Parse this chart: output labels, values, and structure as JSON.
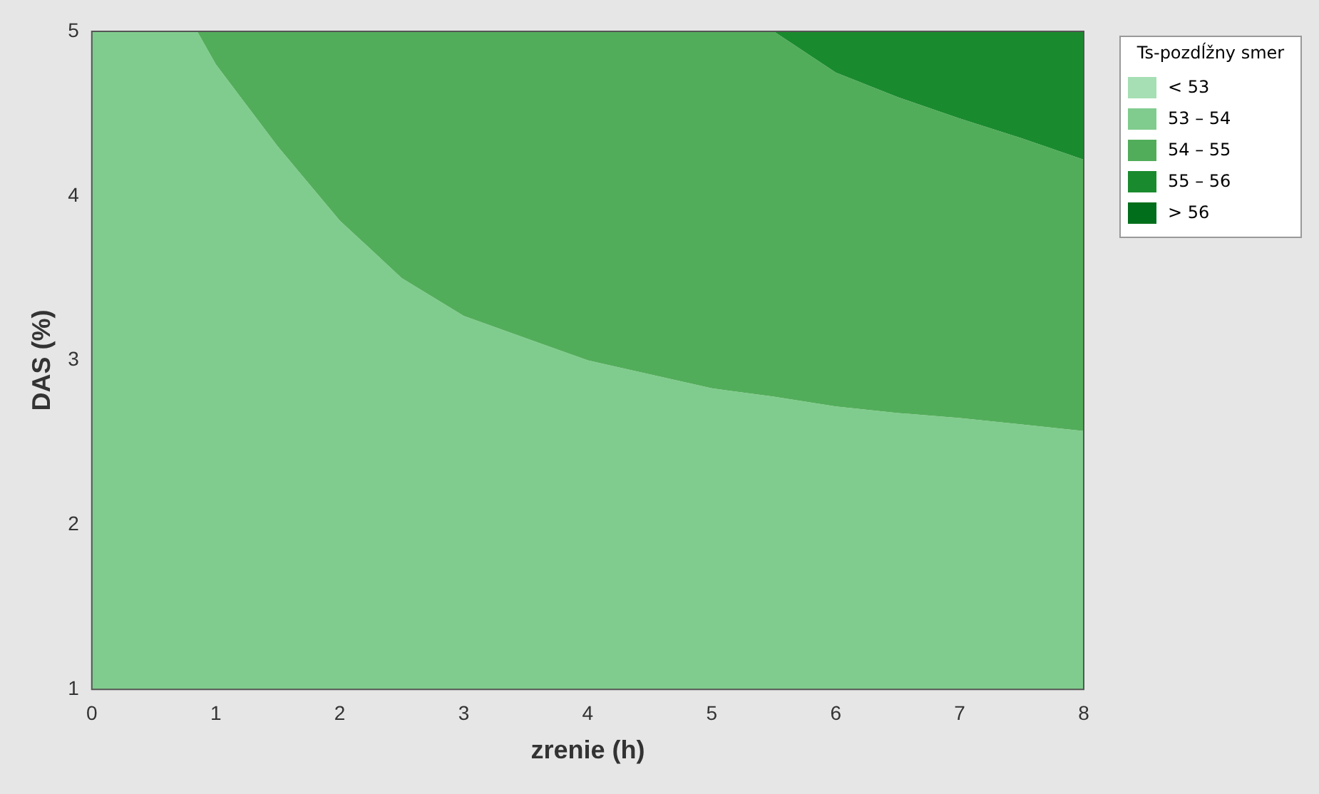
{
  "chart_data": {
    "type": "area",
    "xlabel": "zrenie (h)",
    "ylabel": "DAS (%)",
    "legend_title": "Ts-pozdĺžny smer",
    "legend": "right",
    "grid": false,
    "marker": "none",
    "x": [
      0,
      0.85,
      1,
      1.5,
      2,
      2.5,
      3,
      4,
      5,
      5.5,
      6,
      6.5,
      7,
      7.5,
      8
    ],
    "xlim": [
      0,
      8
    ],
    "xticks": [
      0,
      1,
      2,
      3,
      4,
      5,
      6,
      7,
      8
    ],
    "ylim": [
      1,
      5
    ],
    "yticks": [
      1,
      2,
      3,
      4,
      5
    ],
    "series": [
      {
        "name": "< 53",
        "color": "#a6dfb3",
        "values": [
          null,
          null,
          null,
          null,
          null,
          null,
          null,
          null,
          null,
          null,
          null,
          null,
          null,
          null,
          null
        ]
      },
      {
        "name": "53 – 54",
        "color": "#80cc8e",
        "values": [
          5,
          5,
          4.8,
          4.3,
          3.85,
          3.5,
          3.27,
          3.0,
          2.83,
          2.78,
          2.72,
          2.68,
          2.65,
          2.61,
          2.57
        ]
      },
      {
        "name": "54 – 55",
        "color": "#52ad5a",
        "values": [
          5,
          5,
          5,
          5,
          5,
          5,
          5,
          5,
          5,
          5,
          4.75,
          4.6,
          4.47,
          4.35,
          4.22
        ]
      },
      {
        "name": "55 – 56",
        "color": "#1a8a2e",
        "values": [
          null,
          null,
          null,
          null,
          null,
          null,
          null,
          null,
          null,
          5,
          5,
          5,
          5,
          5,
          5
        ]
      },
      {
        "name": "> 56",
        "color": "#006e1a",
        "values": [
          null,
          null,
          null,
          null,
          null,
          null,
          null,
          null,
          null,
          null,
          null,
          null,
          null,
          null,
          null
        ]
      }
    ]
  }
}
